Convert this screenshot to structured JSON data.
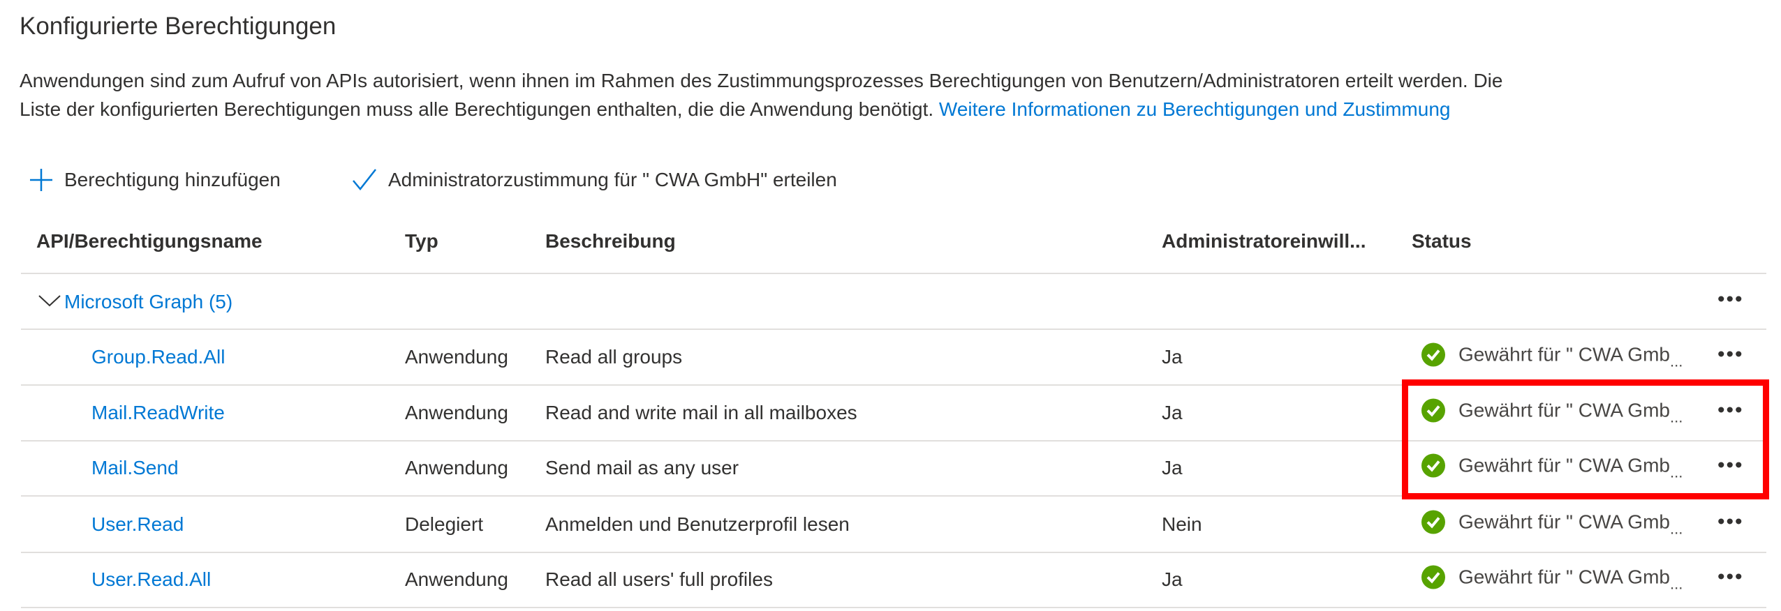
{
  "title": "Konfigurierte Berechtigungen",
  "description": {
    "line1": "Anwendungen sind zum Aufruf von APIs autorisiert, wenn ihnen im Rahmen des Zustimmungsprozesses Berechtigungen von Benutzern/Administratoren erteilt werden. Die",
    "line2": "Liste der konfigurierten Berechtigungen muss alle Berechtigungen enthalten, die die Anwendung benötigt.",
    "link": "Weitere Informationen zu Berechtigungen und Zustimmung"
  },
  "toolbar": {
    "add": "Berechtigung hinzufügen",
    "consent": "Administratorzustimmung für \" CWA GmbH\" erteilen"
  },
  "columns": [
    "API/Berechtigungsname",
    "Typ",
    "Beschreibung",
    "Administratoreinwill...",
    "Status"
  ],
  "group": {
    "label": "Microsoft Graph (5)",
    "more": "•••"
  },
  "rows": [
    {
      "name": "Group.Read.All",
      "type": "Anwendung",
      "desc": "Read all groups",
      "admin": "Ja",
      "status": "Gewährt für \" CWA Gmb",
      "more": "•••"
    },
    {
      "name": "Mail.ReadWrite",
      "type": "Anwendung",
      "desc": "Read and write mail in all mailboxes",
      "admin": "Ja",
      "status": "Gewährt für \" CWA Gmb",
      "more": "•••"
    },
    {
      "name": "Mail.Send",
      "type": "Anwendung",
      "desc": "Send mail as any user",
      "admin": "Ja",
      "status": "Gewährt für \" CWA Gmb",
      "more": "•••"
    },
    {
      "name": "User.Read",
      "type": "Delegiert",
      "desc": "Anmelden und Benutzerprofil lesen",
      "admin": "Nein",
      "status": "Gewährt für \" CWA Gmb",
      "more": "•••"
    },
    {
      "name": "User.Read.All",
      "type": "Anwendung",
      "desc": "Read all users' full profiles",
      "admin": "Ja",
      "status": "Gewährt für \" CWA Gmb",
      "more": "•••"
    }
  ],
  "colors": {
    "link": "#0078d4",
    "granted": "#57a300",
    "highlight": "#ff0000"
  }
}
